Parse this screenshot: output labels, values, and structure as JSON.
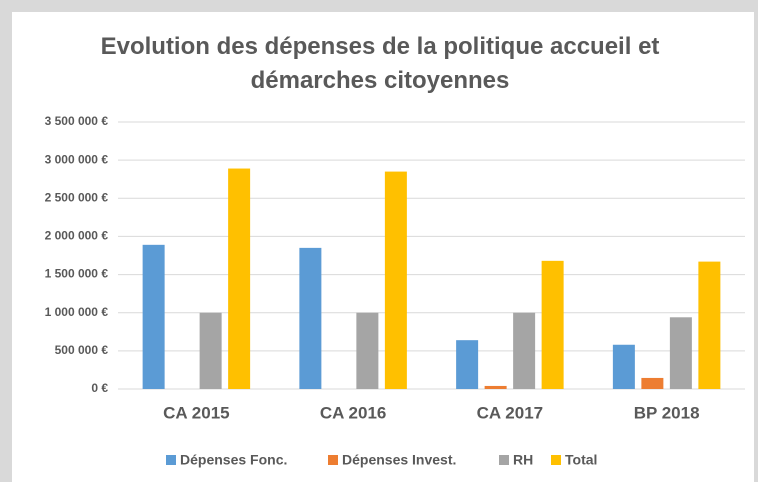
{
  "chart_data": {
    "type": "bar",
    "title": "Evolution des dépenses de la politique accueil et démarches citoyennes",
    "categories": [
      "CA 2015",
      "CA 2016",
      "CA 2017",
      "BP 2018"
    ],
    "series": [
      {
        "name": "Dépenses Fonc.",
        "color": "#5b9bd5",
        "values": [
          1890000,
          1850000,
          640000,
          580000
        ]
      },
      {
        "name": "Dépenses Invest.",
        "color": "#ed7d31",
        "values": [
          0,
          0,
          40000,
          145000
        ]
      },
      {
        "name": "RH",
        "color": "#a5a5a5",
        "values": [
          1000000,
          1000000,
          1000000,
          940000
        ]
      },
      {
        "name": "Total",
        "color": "#ffc000",
        "values": [
          2890000,
          2850000,
          1680000,
          1670000
        ]
      }
    ],
    "ylim": [
      0,
      3500000
    ],
    "yticks": [
      {
        "value": 0,
        "label": "0 €"
      },
      {
        "value": 500000,
        "label": "500 000 €"
      },
      {
        "value": 1000000,
        "label": "1 000 000 €"
      },
      {
        "value": 1500000,
        "label": "1 500 000 €"
      },
      {
        "value": 2000000,
        "label": "2 000 000 €"
      },
      {
        "value": 2500000,
        "label": "2 500 000 €"
      },
      {
        "value": 3000000,
        "label": "3 000 000 €"
      },
      {
        "value": 3500000,
        "label": "3 500 000 €"
      }
    ],
    "grid": true,
    "legend": "bottom"
  }
}
